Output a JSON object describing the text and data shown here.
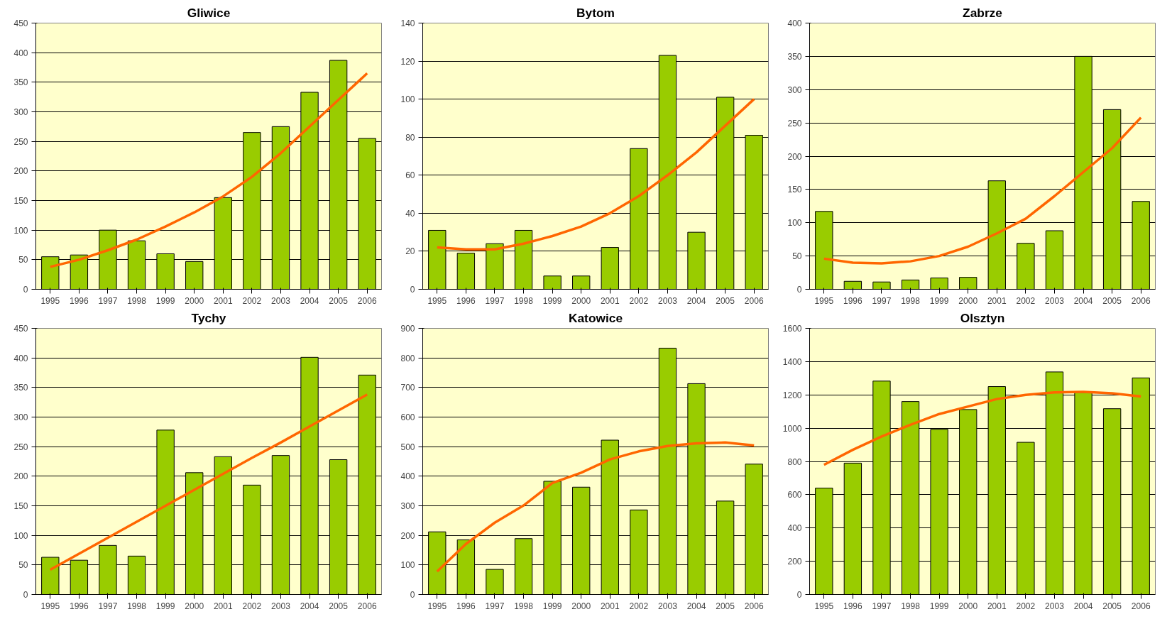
{
  "chart_data": [
    {
      "type": "bar",
      "title": "Gliwice",
      "categories": [
        "1995",
        "1996",
        "1997",
        "1998",
        "1999",
        "2000",
        "2001",
        "2002",
        "2003",
        "2004",
        "2005",
        "2006"
      ],
      "ylim": [
        0,
        450
      ],
      "yticks": [
        0,
        50,
        100,
        150,
        200,
        250,
        300,
        350,
        400,
        450
      ],
      "grid": "y",
      "series": [
        {
          "color": "#99cc00",
          "values": [
            55,
            58,
            100,
            82,
            60,
            47,
            155,
            265,
            275,
            333,
            387,
            255
          ]
        },
        {
          "type": "line",
          "color": "#ff6600",
          "values": [
            38,
            50,
            66,
            84,
            106,
            130,
            157,
            190,
            230,
            275,
            320,
            365
          ]
        }
      ]
    },
    {
      "type": "bar",
      "title": "Bytom",
      "categories": [
        "1995",
        "1996",
        "1997",
        "1998",
        "1999",
        "2000",
        "2001",
        "2002",
        "2003",
        "2004",
        "2005",
        "2006"
      ],
      "ylim": [
        0,
        140
      ],
      "yticks": [
        0,
        20,
        40,
        60,
        80,
        100,
        120,
        140
      ],
      "grid": "y",
      "series": [
        {
          "color": "#99cc00",
          "values": [
            31,
            19,
            24,
            31,
            7,
            7,
            22,
            74,
            123,
            30,
            101,
            81
          ]
        },
        {
          "type": "line",
          "color": "#ff6600",
          "values": [
            22,
            21,
            21,
            24,
            28,
            33,
            40,
            49,
            60,
            72,
            86,
            100
          ]
        }
      ]
    },
    {
      "type": "bar",
      "title": "Zabrze",
      "categories": [
        "1995",
        "1996",
        "1997",
        "1998",
        "1999",
        "2000",
        "2001",
        "2002",
        "2003",
        "2004",
        "2005",
        "2006"
      ],
      "ylim": [
        0,
        400
      ],
      "yticks": [
        0,
        50,
        100,
        150,
        200,
        250,
        300,
        350,
        400
      ],
      "grid": "y",
      "series": [
        {
          "color": "#99cc00",
          "values": [
            117,
            12,
            11,
            14,
            17,
            18,
            163,
            69,
            88,
            350,
            270,
            132
          ]
        },
        {
          "type": "line",
          "color": "#ff6600",
          "values": [
            46,
            40,
            39,
            42,
            50,
            64,
            84,
            106,
            140,
            176,
            212,
            258
          ]
        }
      ]
    },
    {
      "type": "bar",
      "title": "Tychy",
      "categories": [
        "1995",
        "1996",
        "1997",
        "1998",
        "1999",
        "2000",
        "2001",
        "2002",
        "2003",
        "2004",
        "2005",
        "2006"
      ],
      "ylim": [
        0,
        450
      ],
      "yticks": [
        0,
        50,
        100,
        150,
        200,
        250,
        300,
        350,
        400,
        450
      ],
      "grid": "y",
      "series": [
        {
          "color": "#99cc00",
          "values": [
            63,
            58,
            83,
            65,
            278,
            206,
            233,
            185,
            235,
            401,
            228,
            371
          ]
        },
        {
          "type": "line",
          "color": "#ff6600",
          "values": [
            42,
            69,
            96,
            123,
            150,
            177,
            204,
            231,
            257,
            284,
            311,
            338
          ]
        }
      ]
    },
    {
      "type": "bar",
      "title": "Katowice",
      "categories": [
        "1995",
        "1996",
        "1997",
        "1998",
        "1999",
        "2000",
        "2001",
        "2002",
        "2003",
        "2004",
        "2005",
        "2006"
      ],
      "ylim": [
        0,
        900
      ],
      "yticks": [
        0,
        100,
        200,
        300,
        400,
        500,
        600,
        700,
        800,
        900
      ],
      "grid": "y",
      "series": [
        {
          "color": "#99cc00",
          "values": [
            212,
            185,
            85,
            189,
            383,
            363,
            522,
            286,
            833,
            713,
            316,
            441
          ]
        },
        {
          "type": "line",
          "color": "#ff6600",
          "values": [
            78,
            171,
            243,
            301,
            377,
            412,
            457,
            484,
            502,
            511,
            514,
            504
          ]
        }
      ]
    },
    {
      "type": "bar",
      "title": "Olsztyn",
      "categories": [
        "1995",
        "1996",
        "1997",
        "1998",
        "1999",
        "2000",
        "2001",
        "2002",
        "2003",
        "2004",
        "2005",
        "2006"
      ],
      "ylim": [
        0,
        1600
      ],
      "yticks": [
        0,
        200,
        400,
        600,
        800,
        1000,
        1200,
        1400,
        1600
      ],
      "grid": "y",
      "series": [
        {
          "color": "#99cc00",
          "values": [
            640,
            790,
            1283,
            1160,
            993,
            1112,
            1250,
            915,
            1338,
            1215,
            1117,
            1302
          ]
        },
        {
          "type": "line",
          "color": "#ff6600",
          "values": [
            780,
            870,
            950,
            1020,
            1085,
            1130,
            1175,
            1200,
            1215,
            1218,
            1210,
            1190
          ]
        }
      ]
    }
  ]
}
